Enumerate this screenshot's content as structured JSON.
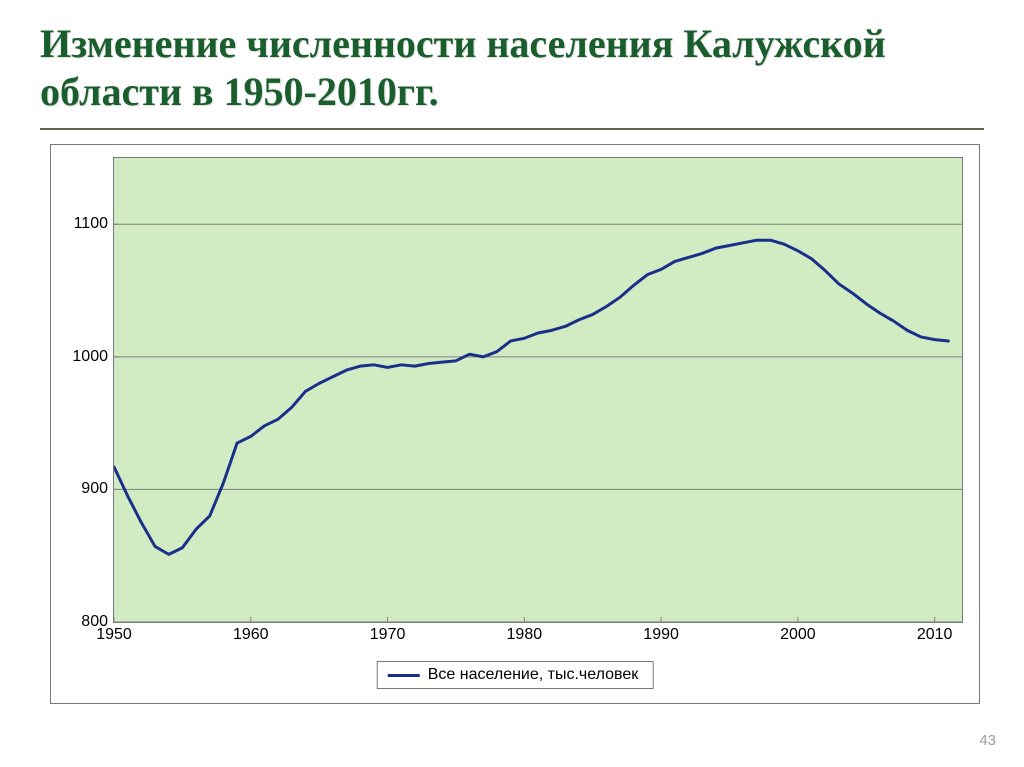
{
  "slide": {
    "title": "Изменение численности населения Калужской области в 1950-2010гг.",
    "page_number": "43",
    "title_color": "#1a5e2e",
    "title_fontsize": 40
  },
  "chart": {
    "type": "line",
    "plot_background": "#d1ebc3",
    "outer_background": "#ffffff",
    "border_color": "#7a7a7a",
    "grid_color": "#808080",
    "line_color": "#1a2f8a",
    "line_width": 3,
    "ylim": [
      800,
      1150
    ],
    "yticks": [
      800,
      900,
      1000,
      1100
    ],
    "ytick_labels": [
      "800",
      "900",
      "1000",
      "1100"
    ],
    "xlim": [
      1950,
      2012
    ],
    "xticks": [
      1950,
      1960,
      1970,
      1980,
      1990,
      2000,
      2010
    ],
    "xtick_labels": [
      "1950",
      "1960",
      "1970",
      "1980",
      "1990",
      "2000",
      "2010"
    ],
    "tick_fontsize": 16,
    "tick_fontfamily": "Arial",
    "series": [
      {
        "name": "Все население, тыс.человек",
        "x": [
          1950,
          1951,
          1952,
          1953,
          1954,
          1955,
          1956,
          1957,
          1958,
          1959,
          1960,
          1961,
          1962,
          1963,
          1964,
          1965,
          1966,
          1967,
          1968,
          1969,
          1970,
          1971,
          1972,
          1973,
          1974,
          1975,
          1976,
          1977,
          1978,
          1979,
          1980,
          1981,
          1982,
          1983,
          1984,
          1985,
          1986,
          1987,
          1988,
          1989,
          1990,
          1991,
          1992,
          1993,
          1994,
          1995,
          1996,
          1997,
          1998,
          1999,
          2000,
          2001,
          2002,
          2003,
          2004,
          2005,
          2006,
          2007,
          2008,
          2009,
          2010,
          2011
        ],
        "y": [
          917,
          895,
          875,
          857,
          851,
          856,
          870,
          880,
          905,
          935,
          940,
          948,
          953,
          962,
          974,
          980,
          985,
          990,
          993,
          994,
          992,
          994,
          993,
          995,
          996,
          997,
          1002,
          1000,
          1004,
          1012,
          1014,
          1018,
          1020,
          1023,
          1028,
          1032,
          1038,
          1045,
          1054,
          1062,
          1066,
          1072,
          1075,
          1078,
          1082,
          1084,
          1086,
          1088,
          1088,
          1085,
          1080,
          1074,
          1065,
          1055,
          1048,
          1040,
          1033,
          1027,
          1020,
          1015,
          1013,
          1012
        ]
      }
    ],
    "legend": {
      "label": "Все население, тыс.человек",
      "position": "bottom-center",
      "border_color": "#7a7a7a",
      "swatch_color": "#1a2f8a"
    }
  }
}
